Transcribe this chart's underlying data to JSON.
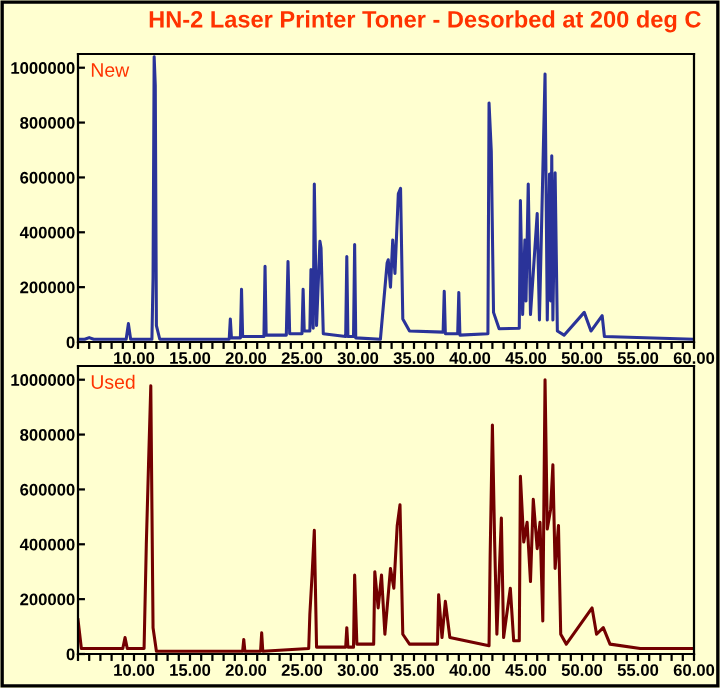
{
  "chart_data": [
    {
      "type": "line",
      "title": "HN-2 Laser Printer Toner - Desorbed at 200 deg C",
      "subtitle": "New",
      "xlim": [
        5,
        60
      ],
      "ylim": [
        0,
        1050000
      ],
      "xticks": [
        {
          "value": 5,
          "label": null
        },
        {
          "value": 6,
          "label": null
        },
        {
          "value": 7,
          "label": null
        },
        {
          "value": 8,
          "label": null
        },
        {
          "value": 9,
          "label": null
        },
        {
          "value": 10,
          "label": "10.00"
        },
        {
          "value": 11,
          "label": null
        },
        {
          "value": 12,
          "label": null
        },
        {
          "value": 13,
          "label": null
        },
        {
          "value": 14,
          "label": null
        },
        {
          "value": 15,
          "label": "15.00"
        },
        {
          "value": 16,
          "label": null
        },
        {
          "value": 17,
          "label": null
        },
        {
          "value": 18,
          "label": null
        },
        {
          "value": 19,
          "label": null
        },
        {
          "value": 20,
          "label": "20.00"
        },
        {
          "value": 21,
          "label": null
        },
        {
          "value": 22,
          "label": null
        },
        {
          "value": 23,
          "label": null
        },
        {
          "value": 24,
          "label": null
        },
        {
          "value": 25,
          "label": "25.00"
        },
        {
          "value": 26,
          "label": null
        },
        {
          "value": 27,
          "label": null
        },
        {
          "value": 28,
          "label": null
        },
        {
          "value": 29,
          "label": null
        },
        {
          "value": 30,
          "label": "30.00"
        },
        {
          "value": 31,
          "label": null
        },
        {
          "value": 32,
          "label": null
        },
        {
          "value": 33,
          "label": null
        },
        {
          "value": 34,
          "label": null
        },
        {
          "value": 35,
          "label": "35.00"
        },
        {
          "value": 36,
          "label": null
        },
        {
          "value": 37,
          "label": null
        },
        {
          "value": 38,
          "label": null
        },
        {
          "value": 39,
          "label": null
        },
        {
          "value": 40,
          "label": "40.00"
        },
        {
          "value": 41,
          "label": null
        },
        {
          "value": 42,
          "label": null
        },
        {
          "value": 43,
          "label": null
        },
        {
          "value": 44,
          "label": null
        },
        {
          "value": 45,
          "label": "45.00"
        },
        {
          "value": 46,
          "label": null
        },
        {
          "value": 47,
          "label": null
        },
        {
          "value": 48,
          "label": null
        },
        {
          "value": 49,
          "label": null
        },
        {
          "value": 50,
          "label": "50.00"
        },
        {
          "value": 51,
          "label": null
        },
        {
          "value": 52,
          "label": null
        },
        {
          "value": 53,
          "label": null
        },
        {
          "value": 54,
          "label": null
        },
        {
          "value": 55,
          "label": "55.00"
        },
        {
          "value": 56,
          "label": null
        },
        {
          "value": 57,
          "label": null
        },
        {
          "value": 58,
          "label": null
        },
        {
          "value": 59,
          "label": null
        },
        {
          "value": 60,
          "label": "60.00"
        }
      ],
      "yticks": [
        0,
        200000,
        400000,
        600000,
        800000,
        1000000
      ],
      "grid": false,
      "legend": false,
      "series": [
        {
          "color": "#2a3399",
          "x": [
            5,
            5.6,
            6.0,
            6.4,
            9.3,
            9.5,
            9.7,
            11.6,
            11.7,
            11.8,
            11.9,
            12.0,
            12.3,
            18.5,
            18.6,
            18.7,
            19.5,
            19.6,
            19.7,
            21.6,
            21.7,
            21.8,
            23.6,
            23.75,
            23.9,
            25.0,
            25.1,
            25.2,
            25.7,
            25.8,
            26.0,
            26.1,
            26.3,
            26.6,
            26.7,
            26.9,
            28.9,
            29.0,
            29.1,
            29.6,
            29.7,
            29.8,
            32.0,
            32.6,
            32.7,
            32.9,
            33.1,
            33.3,
            33.6,
            33.8,
            34.0,
            34.6,
            37.6,
            37.7,
            37.8,
            38.9,
            39.0,
            39.1,
            41.6,
            41.7,
            41.9,
            42.1,
            42.6,
            44.4,
            44.5,
            44.7,
            44.9,
            45.0,
            45.2,
            45.4,
            46.0,
            46.2,
            46.7,
            46.9,
            47.1,
            47.2,
            47.3,
            47.4,
            47.6,
            47.8,
            48.4,
            50.2,
            50.8,
            51.8,
            52.0,
            60
          ],
          "values": [
            10000,
            10000,
            16000,
            10000,
            10000,
            67000,
            10000,
            10000,
            233000,
            1040000,
            936000,
            60000,
            10000,
            10000,
            84000,
            15000,
            15000,
            192000,
            20000,
            20000,
            276000,
            25000,
            25000,
            293000,
            30000,
            30000,
            192000,
            40000,
            40000,
            264000,
            50000,
            576000,
            60000,
            367000,
            343000,
            30000,
            20000,
            312000,
            20000,
            20000,
            355000,
            15000,
            10000,
            288000,
            300000,
            200000,
            372000,
            250000,
            540000,
            560000,
            84000,
            40000,
            36000,
            185000,
            30000,
            30000,
            180000,
            25000,
            30000,
            871000,
            696000,
            108000,
            48000,
            50000,
            516000,
            100000,
            372000,
            150000,
            576000,
            100000,
            468000,
            80000,
            977000,
            80000,
            612000,
            150000,
            679000,
            80000,
            617000,
            40000,
            25000,
            108000,
            40000,
            96000,
            20000,
            10000
          ]
        }
      ]
    },
    {
      "type": "line",
      "subtitle": "Used",
      "xlim": [
        5,
        60
      ],
      "ylim": [
        0,
        1050000
      ],
      "xticks": [
        {
          "value": 5,
          "label": null
        },
        {
          "value": 6,
          "label": null
        },
        {
          "value": 7,
          "label": null
        },
        {
          "value": 8,
          "label": null
        },
        {
          "value": 9,
          "label": null
        },
        {
          "value": 10,
          "label": "10.00"
        },
        {
          "value": 11,
          "label": null
        },
        {
          "value": 12,
          "label": null
        },
        {
          "value": 13,
          "label": null
        },
        {
          "value": 14,
          "label": null
        },
        {
          "value": 15,
          "label": "15.00"
        },
        {
          "value": 16,
          "label": null
        },
        {
          "value": 17,
          "label": null
        },
        {
          "value": 18,
          "label": null
        },
        {
          "value": 19,
          "label": null
        },
        {
          "value": 20,
          "label": "20.00"
        },
        {
          "value": 21,
          "label": null
        },
        {
          "value": 22,
          "label": null
        },
        {
          "value": 23,
          "label": null
        },
        {
          "value": 24,
          "label": null
        },
        {
          "value": 25,
          "label": "25.00"
        },
        {
          "value": 26,
          "label": null
        },
        {
          "value": 27,
          "label": null
        },
        {
          "value": 28,
          "label": null
        },
        {
          "value": 29,
          "label": null
        },
        {
          "value": 30,
          "label": "30.00"
        },
        {
          "value": 31,
          "label": null
        },
        {
          "value": 32,
          "label": null
        },
        {
          "value": 33,
          "label": null
        },
        {
          "value": 34,
          "label": null
        },
        {
          "value": 35,
          "label": "35.00"
        },
        {
          "value": 36,
          "label": null
        },
        {
          "value": 37,
          "label": null
        },
        {
          "value": 38,
          "label": null
        },
        {
          "value": 39,
          "label": null
        },
        {
          "value": 40,
          "label": "40.00"
        },
        {
          "value": 41,
          "label": null
        },
        {
          "value": 42,
          "label": null
        },
        {
          "value": 43,
          "label": null
        },
        {
          "value": 44,
          "label": null
        },
        {
          "value": 45,
          "label": "45.00"
        },
        {
          "value": 46,
          "label": null
        },
        {
          "value": 47,
          "label": null
        },
        {
          "value": 48,
          "label": null
        },
        {
          "value": 49,
          "label": null
        },
        {
          "value": 50,
          "label": "50.00"
        },
        {
          "value": 51,
          "label": null
        },
        {
          "value": 52,
          "label": null
        },
        {
          "value": 53,
          "label": null
        },
        {
          "value": 54,
          "label": null
        },
        {
          "value": 55,
          "label": "55.00"
        },
        {
          "value": 56,
          "label": null
        },
        {
          "value": 57,
          "label": null
        },
        {
          "value": 58,
          "label": null
        },
        {
          "value": 59,
          "label": null
        },
        {
          "value": 60,
          "label": "60.00"
        }
      ],
      "yticks": [
        0,
        200000,
        400000,
        600000,
        800000,
        1000000
      ],
      "grid": false,
      "legend": false,
      "series": [
        {
          "color": "#730000",
          "x": [
            5,
            5.3,
            9.0,
            9.2,
            9.4,
            10.9,
            11.1,
            11.3,
            11.5,
            11.7,
            12.0,
            19.7,
            19.8,
            19.9,
            21.3,
            21.4,
            21.5,
            25.6,
            25.7,
            25.9,
            26.1,
            26.3,
            28.9,
            29.0,
            29.1,
            29.6,
            29.7,
            29.9,
            31.4,
            31.5,
            31.8,
            32.1,
            32.4,
            32.9,
            33.2,
            33.5,
            33.75,
            34.0,
            34.6,
            37.1,
            37.2,
            37.5,
            37.8,
            38.2,
            41.7,
            41.8,
            42.0,
            42.2,
            42.4,
            42.8,
            43.0,
            43.6,
            43.9,
            44.4,
            44.5,
            44.8,
            45.1,
            45.4,
            45.65,
            46.0,
            46.25,
            46.5,
            46.7,
            46.9,
            47.2,
            47.4,
            47.6,
            47.9,
            48.1,
            48.6,
            50.9,
            51.3,
            51.9,
            52.5,
            55.2,
            60
          ],
          "values": [
            125000,
            20000,
            20000,
            60000,
            20000,
            20000,
            400000,
            695000,
            978000,
            96000,
            10000,
            10000,
            53000,
            10000,
            10000,
            77000,
            10000,
            20000,
            144000,
            288000,
            451000,
            25000,
            25000,
            96000,
            25000,
            25000,
            288000,
            36000,
            36000,
            300000,
            168000,
            288000,
            72000,
            312000,
            240000,
            468000,
            544000,
            72000,
            36000,
            36000,
            216000,
            60000,
            192000,
            60000,
            30000,
            360000,
            835000,
            408000,
            72000,
            496000,
            60000,
            240000,
            48000,
            48000,
            648000,
            408000,
            480000,
            264000,
            564000,
            384000,
            480000,
            120000,
            1000000,
            456000,
            528000,
            690000,
            312000,
            468000,
            72000,
            36000,
            168000,
            72000,
            96000,
            36000,
            20000,
            20000
          ]
        }
      ]
    }
  ]
}
